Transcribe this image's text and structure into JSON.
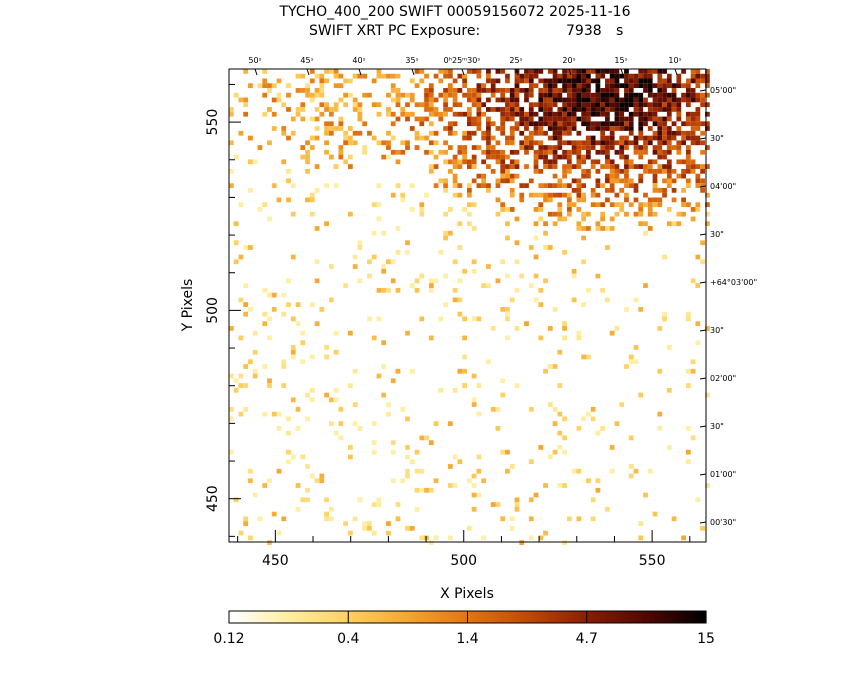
{
  "chart_data": {
    "type": "heatmap",
    "title": "TYCHO_400_200 SWIFT 00059156072 2025-11-16",
    "subtitle": {
      "label": "SWIFT XRT PC Exposure:",
      "value": "7938",
      "unit": "s"
    },
    "xlabel": "X Pixels",
    "ylabel": "Y Pixels",
    "xlim": [
      437.7,
      564.3
    ],
    "ylim": [
      438.5,
      564.1
    ],
    "x_ticks": [
      "450",
      "500",
      "550"
    ],
    "y_ticks": [
      "450",
      "500",
      "550"
    ],
    "ra_ticks": [
      "50ˢ",
      "45ˢ",
      "40ˢ",
      "35ˢ",
      "0ʰ25ᵐ30ˢ",
      "25ˢ",
      "20ˢ",
      "15ˢ",
      "10ˢ"
    ],
    "dec_ticks": [
      "05'00\"",
      "30\"",
      "04'00\"",
      "30\"",
      "+64°03'00\"",
      "30\"",
      "02'00\"",
      "30\"",
      "01'00\"",
      "00'30\""
    ],
    "colorbar": {
      "labels": [
        "0.12",
        "0.4",
        "1.4",
        "4.7",
        "15"
      ],
      "min": 0.12,
      "max": 15,
      "scale": "log",
      "colors": [
        "#ffffff",
        "#ffeda0",
        "#fed060",
        "#f4a62e",
        "#e37511",
        "#c24a05",
        "#8a1e02",
        "#520802",
        "#000000"
      ]
    },
    "grid": false
  }
}
